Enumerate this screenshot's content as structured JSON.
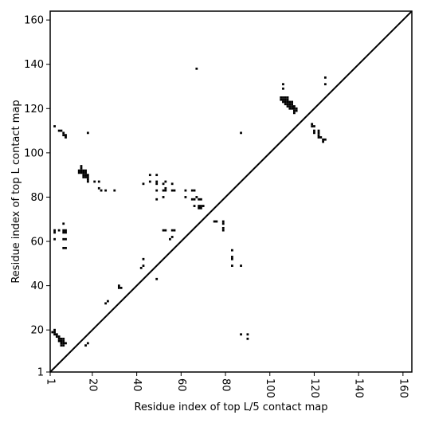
{
  "chart_data": {
    "type": "scatter",
    "title": "",
    "xlabel": "Residue index of top L/5 contact map",
    "ylabel": "Residue index of top L contact map",
    "xlim": [
      1,
      164
    ],
    "ylim": [
      1,
      164
    ],
    "x_ticks": [
      1,
      20,
      40,
      60,
      80,
      100,
      120,
      140,
      160
    ],
    "y_ticks": [
      1,
      20,
      40,
      60,
      80,
      100,
      120,
      140,
      160
    ],
    "diagonal": true,
    "grid": false,
    "marker_color": "#000000",
    "series": [
      {
        "values": [
          [
            3,
            112
          ],
          [
            5,
            110
          ],
          [
            6,
            110
          ],
          [
            7,
            109
          ],
          [
            7,
            108
          ],
          [
            8,
            108
          ],
          [
            8,
            107
          ],
          [
            18,
            109
          ],
          [
            14,
            92
          ],
          [
            14,
            91
          ],
          [
            15,
            94
          ],
          [
            15,
            93
          ],
          [
            15,
            92
          ],
          [
            15,
            91
          ],
          [
            16,
            92
          ],
          [
            16,
            91
          ],
          [
            16,
            90
          ],
          [
            16,
            89
          ],
          [
            17,
            92
          ],
          [
            17,
            91
          ],
          [
            17,
            90
          ],
          [
            17,
            89
          ],
          [
            18,
            90
          ],
          [
            18,
            89
          ],
          [
            18,
            88
          ],
          [
            18,
            87
          ],
          [
            21,
            87
          ],
          [
            23,
            87
          ],
          [
            23,
            84
          ],
          [
            24,
            83
          ],
          [
            26,
            83
          ],
          [
            30,
            83
          ],
          [
            3,
            65
          ],
          [
            3,
            64
          ],
          [
            3,
            61
          ],
          [
            5,
            65
          ],
          [
            7,
            68
          ],
          [
            7,
            65
          ],
          [
            7,
            64
          ],
          [
            8,
            65
          ],
          [
            8,
            64
          ],
          [
            7,
            61
          ],
          [
            8,
            61
          ],
          [
            7,
            57
          ],
          [
            8,
            57
          ],
          [
            2,
            19
          ],
          [
            3,
            20
          ],
          [
            3,
            19
          ],
          [
            3,
            18
          ],
          [
            4,
            18
          ],
          [
            4,
            17
          ],
          [
            5,
            17
          ],
          [
            5,
            16
          ],
          [
            5,
            15
          ],
          [
            6,
            16
          ],
          [
            6,
            15
          ],
          [
            6,
            14
          ],
          [
            6,
            13
          ],
          [
            7,
            16
          ],
          [
            7,
            15
          ],
          [
            7,
            14
          ],
          [
            7,
            13
          ],
          [
            8,
            14
          ],
          [
            17,
            13
          ],
          [
            18,
            14
          ],
          [
            26,
            32
          ],
          [
            27,
            33
          ],
          [
            32,
            40
          ],
          [
            32,
            39
          ],
          [
            33,
            39
          ],
          [
            42,
            48
          ],
          [
            43,
            49
          ],
          [
            43,
            52
          ],
          [
            43,
            86
          ],
          [
            46,
            90
          ],
          [
            46,
            87
          ],
          [
            49,
            90
          ],
          [
            49,
            87
          ],
          [
            49,
            86
          ],
          [
            49,
            83
          ],
          [
            49,
            79
          ],
          [
            49,
            43
          ],
          [
            52,
            86
          ],
          [
            52,
            83
          ],
          [
            52,
            80
          ],
          [
            53,
            87
          ],
          [
            53,
            84
          ],
          [
            53,
            83
          ],
          [
            52,
            65
          ],
          [
            53,
            65
          ],
          [
            55,
            61
          ],
          [
            56,
            62
          ],
          [
            56,
            86
          ],
          [
            56,
            83
          ],
          [
            57,
            83
          ],
          [
            56,
            65
          ],
          [
            57,
            65
          ],
          [
            62,
            83
          ],
          [
            62,
            80
          ],
          [
            65,
            83
          ],
          [
            66,
            83
          ],
          [
            65,
            79
          ],
          [
            66,
            79
          ],
          [
            66,
            76
          ],
          [
            67,
            80
          ],
          [
            67,
            138
          ],
          [
            68,
            79
          ],
          [
            69,
            79
          ],
          [
            68,
            76
          ],
          [
            68,
            75
          ],
          [
            69,
            76
          ],
          [
            69,
            75
          ],
          [
            70,
            76
          ],
          [
            75,
            69
          ],
          [
            76,
            69
          ],
          [
            79,
            69
          ],
          [
            79,
            68
          ],
          [
            79,
            66
          ],
          [
            79,
            65
          ],
          [
            83,
            56
          ],
          [
            83,
            53
          ],
          [
            83,
            52
          ],
          [
            83,
            49
          ],
          [
            87,
            109
          ],
          [
            87,
            49
          ],
          [
            87,
            18
          ],
          [
            90,
            18
          ],
          [
            90,
            16
          ],
          [
            105,
            125
          ],
          [
            105,
            124
          ],
          [
            106,
            131
          ],
          [
            106,
            129
          ],
          [
            106,
            125
          ],
          [
            106,
            124
          ],
          [
            106,
            123
          ],
          [
            107,
            125
          ],
          [
            107,
            124
          ],
          [
            107,
            123
          ],
          [
            107,
            122
          ],
          [
            108,
            125
          ],
          [
            108,
            124
          ],
          [
            108,
            123
          ],
          [
            108,
            122
          ],
          [
            108,
            121
          ],
          [
            109,
            123
          ],
          [
            109,
            122
          ],
          [
            109,
            121
          ],
          [
            109,
            120
          ],
          [
            110,
            123
          ],
          [
            110,
            122
          ],
          [
            110,
            121
          ],
          [
            110,
            120
          ],
          [
            111,
            121
          ],
          [
            111,
            120
          ],
          [
            111,
            119
          ],
          [
            111,
            118
          ],
          [
            112,
            120
          ],
          [
            112,
            119
          ],
          [
            119,
            113
          ],
          [
            119,
            112
          ],
          [
            120,
            112
          ],
          [
            120,
            110
          ],
          [
            120,
            109
          ],
          [
            122,
            110
          ],
          [
            122,
            109
          ],
          [
            122,
            108
          ],
          [
            122,
            107
          ],
          [
            123,
            107
          ],
          [
            124,
            106
          ],
          [
            124,
            105
          ],
          [
            125,
            134
          ],
          [
            125,
            131
          ],
          [
            125,
            106
          ]
        ]
      }
    ]
  }
}
